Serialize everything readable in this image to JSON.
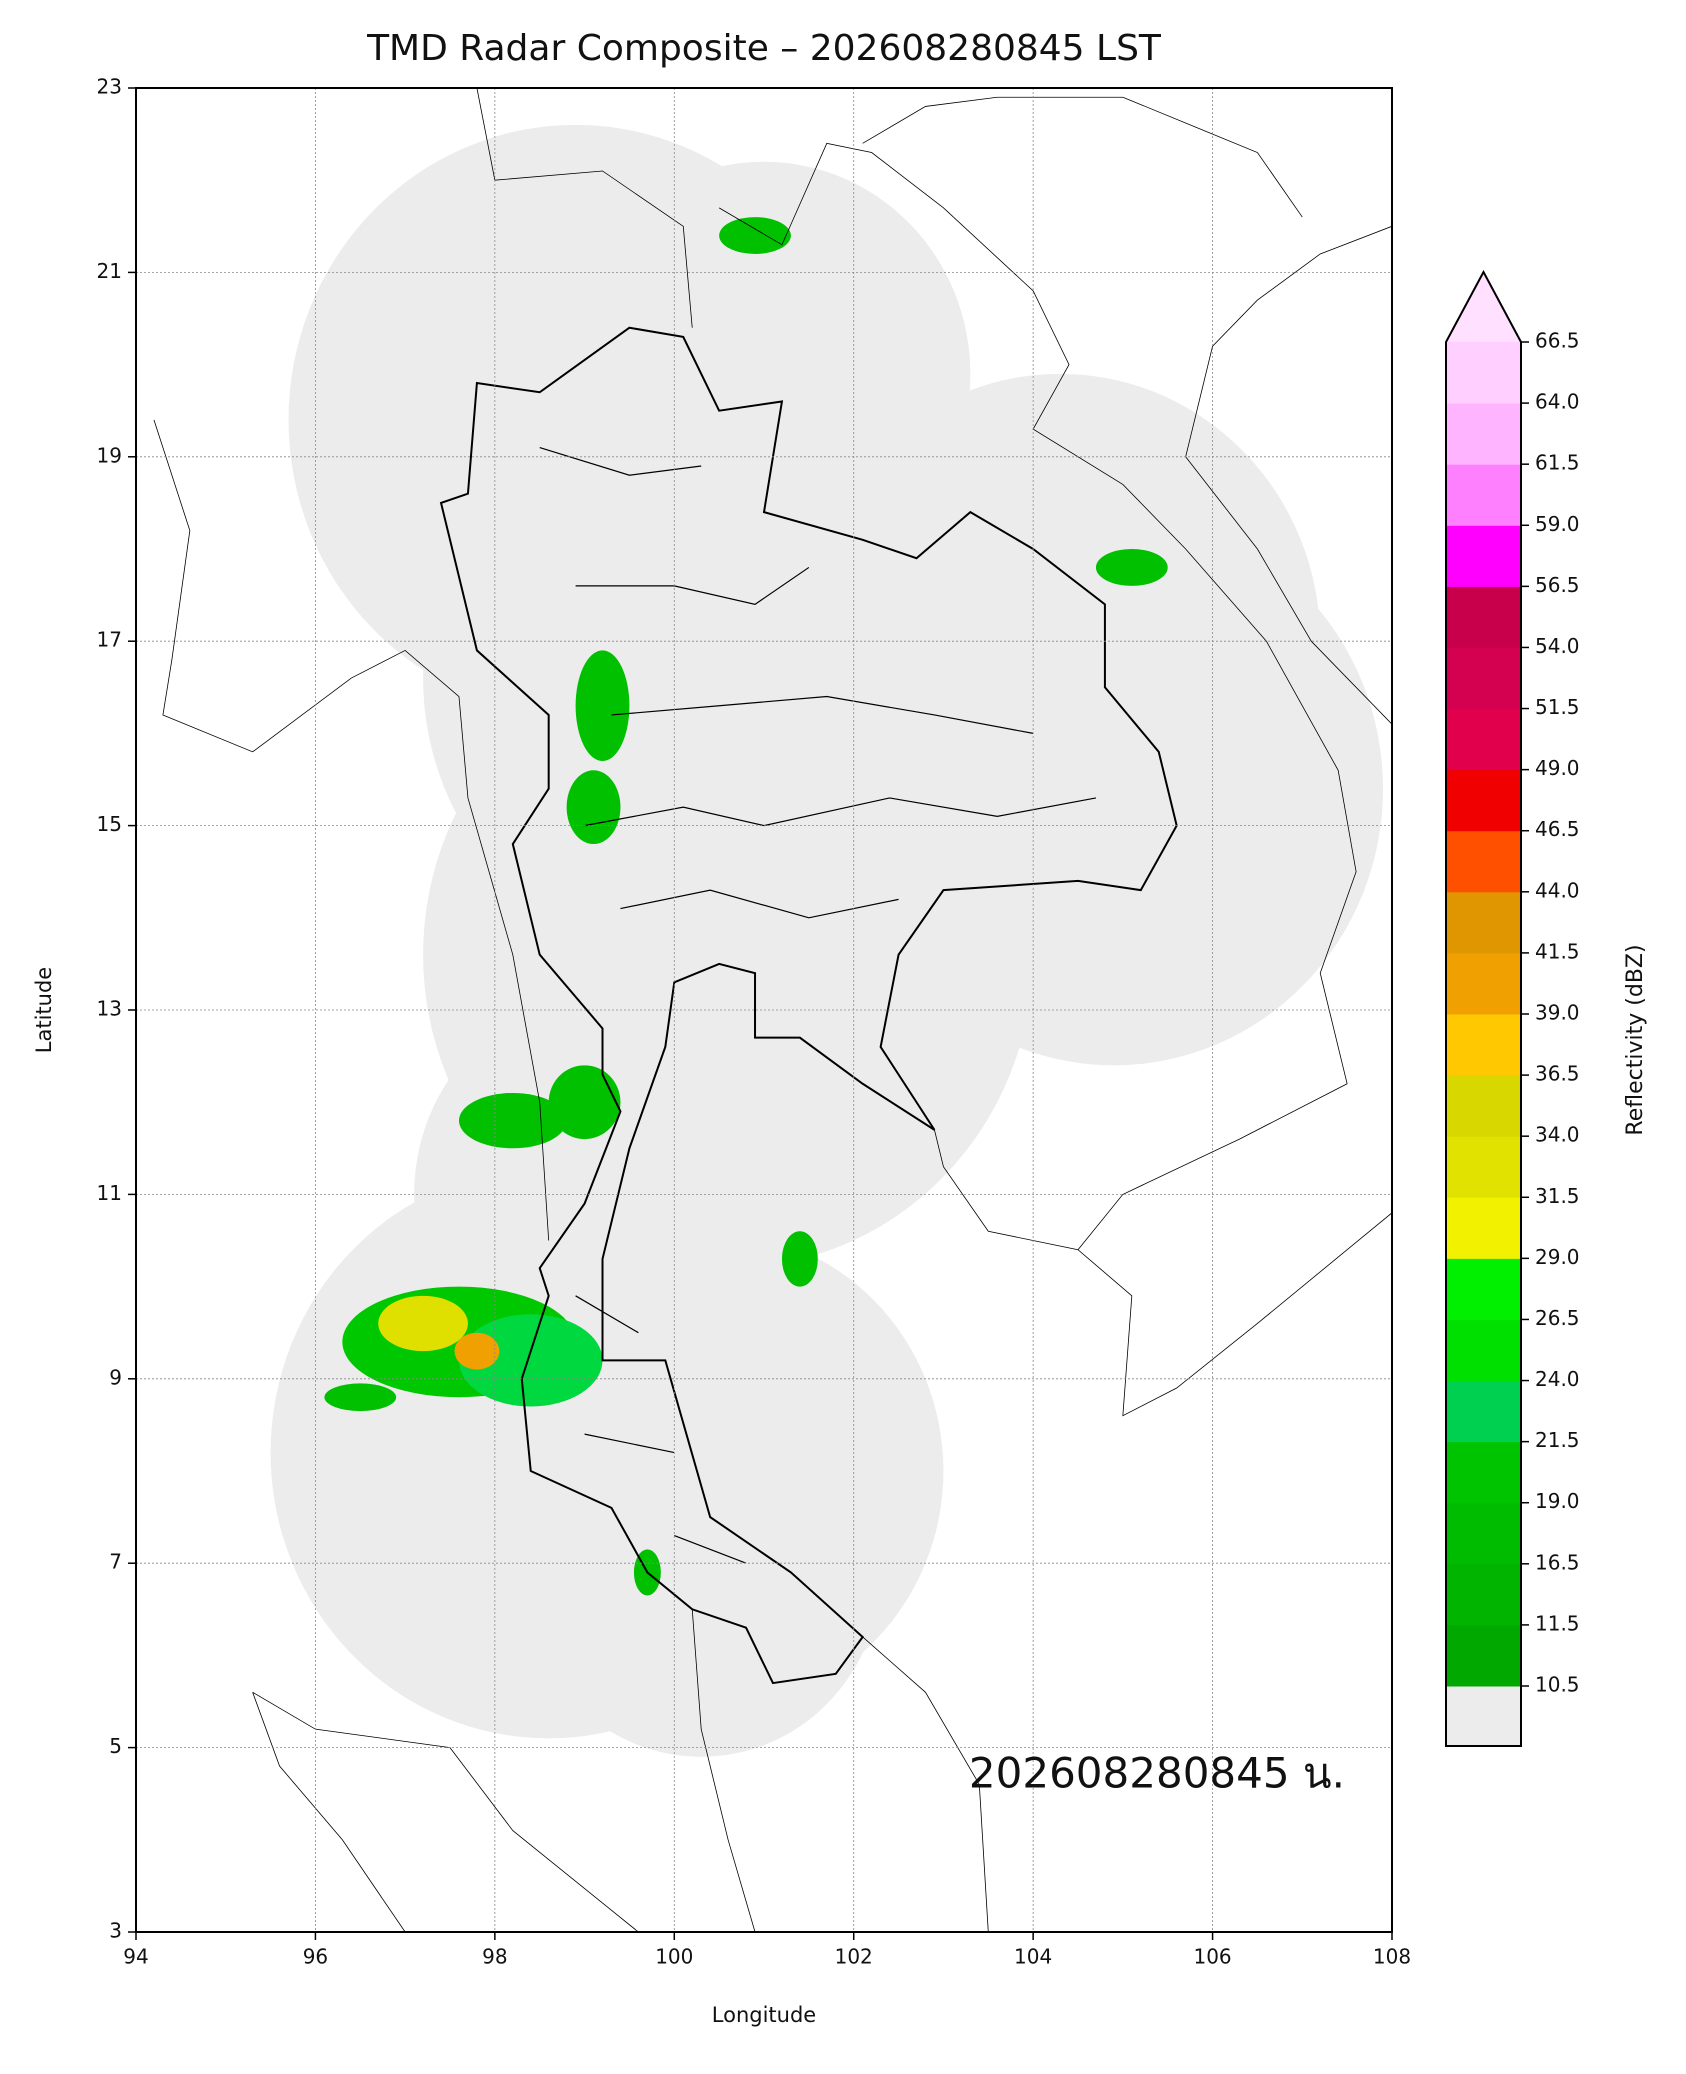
{
  "chart_data": {
    "type": "map",
    "title": "TMD Radar Composite – 202608280845 LST",
    "x_label": "Longitude",
    "y_label": "Latitude",
    "xlim": [
      94,
      108
    ],
    "ylim": [
      3,
      23
    ],
    "xticks": [
      94,
      96,
      98,
      100,
      102,
      104,
      106,
      108
    ],
    "yticks": [
      3,
      5,
      7,
      9,
      11,
      13,
      15,
      17,
      19,
      21,
      23
    ],
    "grid": true,
    "annotation": "202608280845 น.",
    "colorbar": {
      "label": "Reflectivity (dBZ)",
      "levels": [
        10.5,
        11.5,
        16.5,
        {
          "value": 19,
          "label": "19.0"
        },
        21.5,
        {
          "value": 24,
          "label": "24.0"
        },
        26.5,
        {
          "value": 29,
          "label": "29.0"
        },
        31.5,
        {
          "value": 34,
          "label": "34.0"
        },
        36.5,
        {
          "value": 39,
          "label": "39.0"
        },
        41.5,
        {
          "value": 44,
          "label": "44.0"
        },
        46.5,
        {
          "value": 49,
          "label": "49.0"
        },
        51.5,
        {
          "value": 54,
          "label": "54.0"
        },
        56.5,
        {
          "value": 59,
          "label": "59.0"
        },
        61.5,
        {
          "value": 64,
          "label": "64.0"
        },
        66.5
      ],
      "colors": [
        "#00a800",
        "#00b400",
        "#00bc00",
        "#00c400",
        "#00d050",
        "#00e000",
        "#00f000",
        "#f2f200",
        "#e2e200",
        "#d8d800",
        "#ffc800",
        "#f0a000",
        "#e09600",
        "#ff5000",
        "#f00000",
        "#e0004c",
        "#d40050",
        "#c8004c",
        "#ff00ff",
        "#ff80ff",
        "#ffb4ff",
        "#ffd0ff"
      ],
      "extend_color": "#ffe0ff",
      "under_color": "#ececec"
    }
  }
}
